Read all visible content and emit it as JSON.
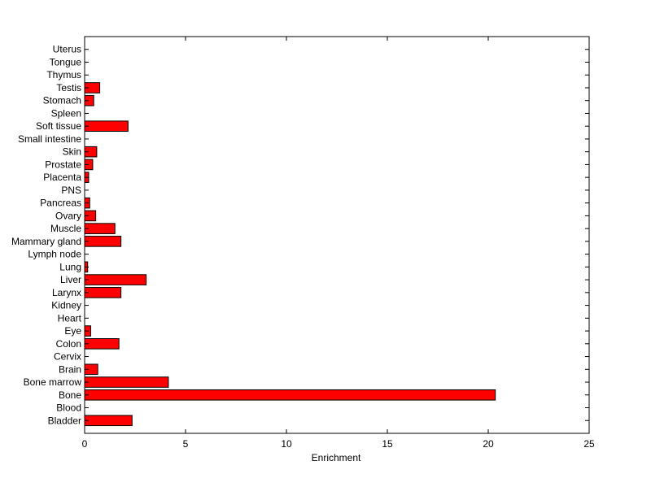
{
  "chart_data": {
    "type": "bar",
    "orientation": "horizontal",
    "title": "",
    "xlabel": "Enrichment",
    "ylabel": "",
    "xlim": [
      0,
      25
    ],
    "xticks": [
      0,
      5,
      10,
      15,
      20,
      25
    ],
    "grid": false,
    "bar_color": "#ff0000",
    "categories": [
      "Bladder",
      "Blood",
      "Bone",
      "Bone marrow",
      "Brain",
      "Cervix",
      "Colon",
      "Eye",
      "Heart",
      "Kidney",
      "Larynx",
      "Liver",
      "Lung",
      "Lymph node",
      "Mammary gland",
      "Muscle",
      "Ovary",
      "Pancreas",
      "PNS",
      "Placenta",
      "Prostate",
      "Skin",
      "Small intestine",
      "Soft tissue",
      "Spleen",
      "Stomach",
      "Testis",
      "Thymus",
      "Tongue",
      "Uterus"
    ],
    "values": [
      2.35,
      0,
      20.35,
      4.15,
      0.65,
      0,
      1.7,
      0.3,
      0,
      0,
      1.8,
      3.05,
      0.15,
      0,
      1.8,
      1.5,
      0.55,
      0.25,
      0,
      0.2,
      0.4,
      0.6,
      0,
      2.15,
      0,
      0.45,
      0.75,
      0,
      0,
      0
    ]
  }
}
